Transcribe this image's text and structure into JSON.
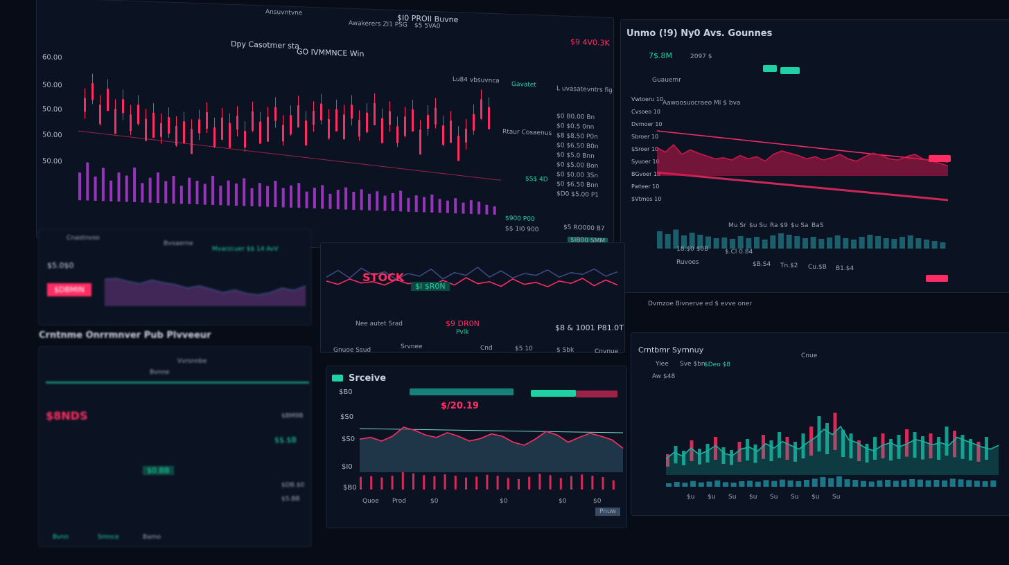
{
  "colors": {
    "accent_green": "#1fd1a4",
    "accent_red": "#ff2d63",
    "accent_purple": "#b13ad6",
    "bg": "#070c16",
    "panel": "#0b1322"
  },
  "main_panel": {
    "header": [
      "Ansuvntvne",
      "$I0 PROII Buvne",
      "Awakerers ZI1 PSG",
      "$5 5VA0"
    ],
    "price_tag": "$9 4V0.3K",
    "toolbar": [
      "Dpy Casotmer sta",
      "GO IVMMNCE Win"
    ],
    "sub_labels": [
      "Lu84 vbsuvnca",
      "Gavatet",
      "L uvasatevntrs fig"
    ],
    "y_axis": [
      "60.00",
      "50.00",
      "50.00",
      "50.00",
      "50.00"
    ],
    "order_book": [
      "$0 B0.00 Bn",
      "$0 $0.5 0nn",
      "$8 $8.50 P0n",
      "$0 $6.50 B0n",
      "$0 $5.0 Bnn",
      "$0 $5.00 Bon",
      "$0 $0.00 3Sn",
      "$0 $6.50 Bnn",
      "$D0 $5.00 P1"
    ],
    "mid_labels": [
      "Rtaur Cosaenus",
      "$S$ 4D"
    ],
    "footer": [
      "$900 P00",
      "$$ 1I0 900",
      "$5 RO000 B7",
      "$IB00 SMM"
    ]
  },
  "right_panel": {
    "title": "Unmo (!9) Ny0 Avs. Gounnes",
    "stat": "7$.8M",
    "stat2": "2097 $",
    "section": "Guauemr",
    "chart_title": "Aawoosuocraeo MI $ bva",
    "y_axis": [
      "Vwtoeru 10",
      "Cvsoeo 10",
      "Dvmoer 10",
      "Sbroer 10",
      "$Sroer 10",
      "Syuoer 10",
      "BGvoer 10",
      "Pwteer 10",
      "$Vtmos 10"
    ],
    "x_labels": [
      "Mu Sr",
      "$u Su",
      "Ra $9",
      "$u Sa",
      "BaS"
    ],
    "bottom": [
      "18.$0 $0B",
      "$.Cl 0.84",
      "Ruvoes",
      "$B.S4",
      "Tn.$2",
      "Cu.$B",
      "B1.$4"
    ],
    "caption": "Dvmzoe Bivnerve ed $ evve oner"
  },
  "left_mid": {
    "tabs": [
      "Cnastnvoo",
      "Bvoaerne"
    ],
    "green_label": "Mvarzcuer $$ 14 AvV",
    "value": "$5.0$0",
    "button": "$DBMIN"
  },
  "center_mid": {
    "overlay": "STOCK",
    "tag": "$I $R0N",
    "labels": [
      "Nee autet Srad",
      "$9 DR0N",
      "$8 & 1001 P81.0T"
    ],
    "sub": "Pvlk",
    "x_labels": [
      "Gnuoe Ssud",
      "Srvnee",
      "Cnd",
      "$5 10",
      "$ Sbk",
      "Cnvnue"
    ]
  },
  "left_bottom": {
    "title": "Crntnme Onrrmnver Pub Plvveeur",
    "rows": [
      "Bvnne",
      "Vvrsnnbe",
      "$BM9B",
      "$$.$B",
      "$0.BB",
      "$DB.$0",
      "$5.BB"
    ],
    "red_value": "$8NDS",
    "buttons": [
      "Bvnn",
      "Smnce",
      "Bamo"
    ]
  },
  "center_bottom": {
    "title": "Srceive",
    "value": "$/20.19",
    "y_axis": [
      "$B0",
      "$S0",
      "$S0",
      "$I0",
      "$B0"
    ],
    "x_labels": [
      "Quoe",
      "Prod",
      "$0",
      "$0",
      "$0",
      "$0"
    ],
    "button": "Pnuw"
  },
  "right_bottom": {
    "title": "Crntbmr Syrnnuy",
    "tabs": [
      "Yiee",
      "Sve $bn",
      "$Deo $8",
      "Cnue"
    ],
    "label": "Aw $48",
    "x_labels": [
      "$u",
      "$u",
      "Su",
      "$u",
      "Su",
      "Su",
      "$u",
      "Su"
    ]
  },
  "series": {
    "main_candles": [
      60,
      72,
      55,
      68,
      52,
      60,
      48,
      56,
      45,
      50,
      42,
      47,
      40,
      44,
      38,
      46,
      52,
      40,
      48,
      44,
      50,
      38,
      54,
      46,
      50,
      58,
      44,
      52,
      60,
      48,
      56,
      62,
      50,
      58,
      54,
      62,
      50,
      56,
      64,
      52,
      58,
      46,
      54,
      60,
      44,
      56,
      62,
      48,
      52,
      40,
      46,
      58,
      70,
      64
    ],
    "main_volume": [
      40,
      55,
      35,
      48,
      30,
      42,
      38,
      50,
      28,
      36,
      44,
      32,
      40,
      26,
      38,
      34,
      30,
      42,
      28,
      36,
      32,
      40,
      26,
      34,
      30,
      38,
      28,
      32,
      36,
      24,
      30,
      34,
      22,
      28,
      32,
      26,
      30,
      24,
      28,
      22,
      26,
      30,
      20,
      24,
      22,
      26,
      20,
      18,
      22,
      16,
      20,
      18,
      14,
      12
    ],
    "right_area": [
      50,
      42,
      55,
      38,
      46,
      40,
      35,
      30,
      32,
      28,
      36,
      30,
      34,
      26,
      38,
      44,
      40,
      36,
      30,
      34,
      28,
      32,
      38,
      30,
      26,
      34,
      40,
      36,
      30,
      28,
      34,
      38,
      30,
      26,
      22,
      18
    ],
    "left_mid_area": [
      60,
      62,
      55,
      50,
      58,
      52,
      48,
      40,
      45,
      38,
      30,
      36,
      28,
      25,
      30,
      40,
      35,
      45
    ],
    "center_mid_line": [
      40,
      55,
      38,
      60,
      45,
      52,
      35,
      48,
      42,
      58,
      36,
      50,
      44,
      62,
      40,
      54,
      38,
      48,
      44,
      56,
      40,
      50,
      46,
      58,
      42,
      52
    ],
    "center_bottom_area": [
      55,
      58,
      52,
      60,
      75,
      70,
      62,
      58,
      66,
      60,
      52,
      56,
      64,
      60,
      50,
      45,
      55,
      68,
      62,
      50,
      58,
      65,
      60,
      54,
      40
    ],
    "right_candles": [
      30,
      42,
      35,
      50,
      38,
      45,
      55,
      40,
      36,
      48,
      52,
      44,
      58,
      50,
      62,
      55,
      48,
      60,
      70,
      85,
      75,
      90,
      65,
      60,
      50,
      45,
      55,
      60,
      52,
      58,
      66,
      62,
      56,
      60,
      55,
      70,
      64,
      58,
      52,
      48,
      55
    ]
  }
}
